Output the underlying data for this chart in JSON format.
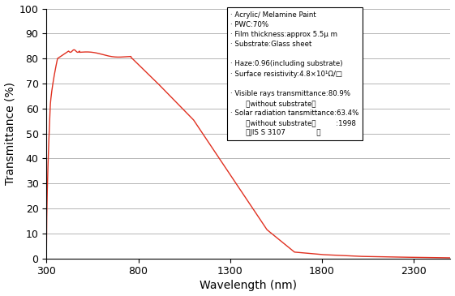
{
  "xlabel": "Wavelength (nm)",
  "ylabel": "Transmittance (%)",
  "x_min": 300,
  "x_max": 2500,
  "y_min": 0,
  "y_max": 100,
  "x_ticks": [
    300,
    800,
    1300,
    1800,
    2300
  ],
  "y_ticks": [
    0,
    10,
    20,
    30,
    40,
    50,
    60,
    70,
    80,
    90,
    100
  ],
  "line_color": "#e03020",
  "background_color": "#ffffff",
  "legend_line1": "· Acrylic／ Melamine Paint",
  "legend_line2": "· PWC:70%",
  "legend_line3": "· Film thickness:approx 5.5μ m",
  "legend_line4": "· Substrate:Glass sheet",
  "legend_line5": "",
  "legend_line6": "· Haze:0.96(including substrate)",
  "legend_line7": "· Surface resistivity:4.8×10¹Ω/□",
  "legend_line8": "",
  "legend_line9": "· Visible rays transmittance:80.9%",
  "legend_line10": "         （without substrate）",
  "legend_line11": "· Solar radiation tansmittance:63.4%",
  "legend_line12": "         （without substrate）",
  "legend_line13": "                             :1998",
  "legend_line14": "         （JIS S 3107          ）"
}
